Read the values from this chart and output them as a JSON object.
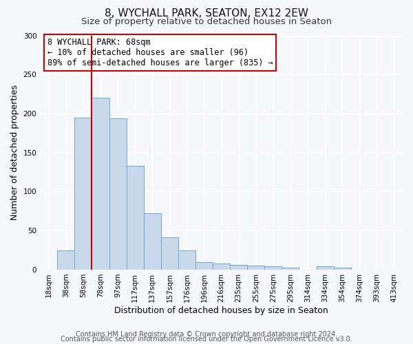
{
  "title": "8, WYCHALL PARK, SEATON, EX12 2EW",
  "subtitle": "Size of property relative to detached houses in Seaton",
  "xlabel": "Distribution of detached houses by size in Seaton",
  "ylabel": "Number of detached properties",
  "bar_labels": [
    "18sqm",
    "38sqm",
    "58sqm",
    "78sqm",
    "97sqm",
    "117sqm",
    "137sqm",
    "157sqm",
    "176sqm",
    "196sqm",
    "216sqm",
    "235sqm",
    "255sqm",
    "275sqm",
    "295sqm",
    "314sqm",
    "334sqm",
    "354sqm",
    "374sqm",
    "393sqm",
    "413sqm"
  ],
  "bar_values": [
    0,
    25,
    195,
    220,
    194,
    133,
    72,
    41,
    25,
    10,
    8,
    6,
    5,
    4,
    3,
    0,
    4,
    3,
    0,
    0,
    0
  ],
  "bar_color": "#c8d9ec",
  "bar_edge_color": "#6fa8d4",
  "ylim": [
    0,
    300
  ],
  "yticks": [
    0,
    50,
    100,
    150,
    200,
    250,
    300
  ],
  "vline_x_idx": 2,
  "vline_color": "#cc0000",
  "annotation_title": "8 WYCHALL PARK: 68sqm",
  "annotation_line1": "← 10% of detached houses are smaller (96)",
  "annotation_line2": "89% of semi-detached houses are larger (835) →",
  "annotation_box_facecolor": "#ffffff",
  "annotation_box_edgecolor": "#cc0000",
  "footer1": "Contains HM Land Registry data © Crown copyright and database right 2024.",
  "footer2": "Contains public sector information licensed under the Open Government Licence v3.0.",
  "fig_facecolor": "#f5f7fa",
  "plot_facecolor": "#f5f7fa",
  "grid_color": "#ffffff",
  "title_fontsize": 11,
  "subtitle_fontsize": 9.5,
  "xlabel_fontsize": 9,
  "ylabel_fontsize": 9,
  "tick_fontsize": 7.5,
  "footer_fontsize": 7,
  "ann_fontsize": 8.5
}
